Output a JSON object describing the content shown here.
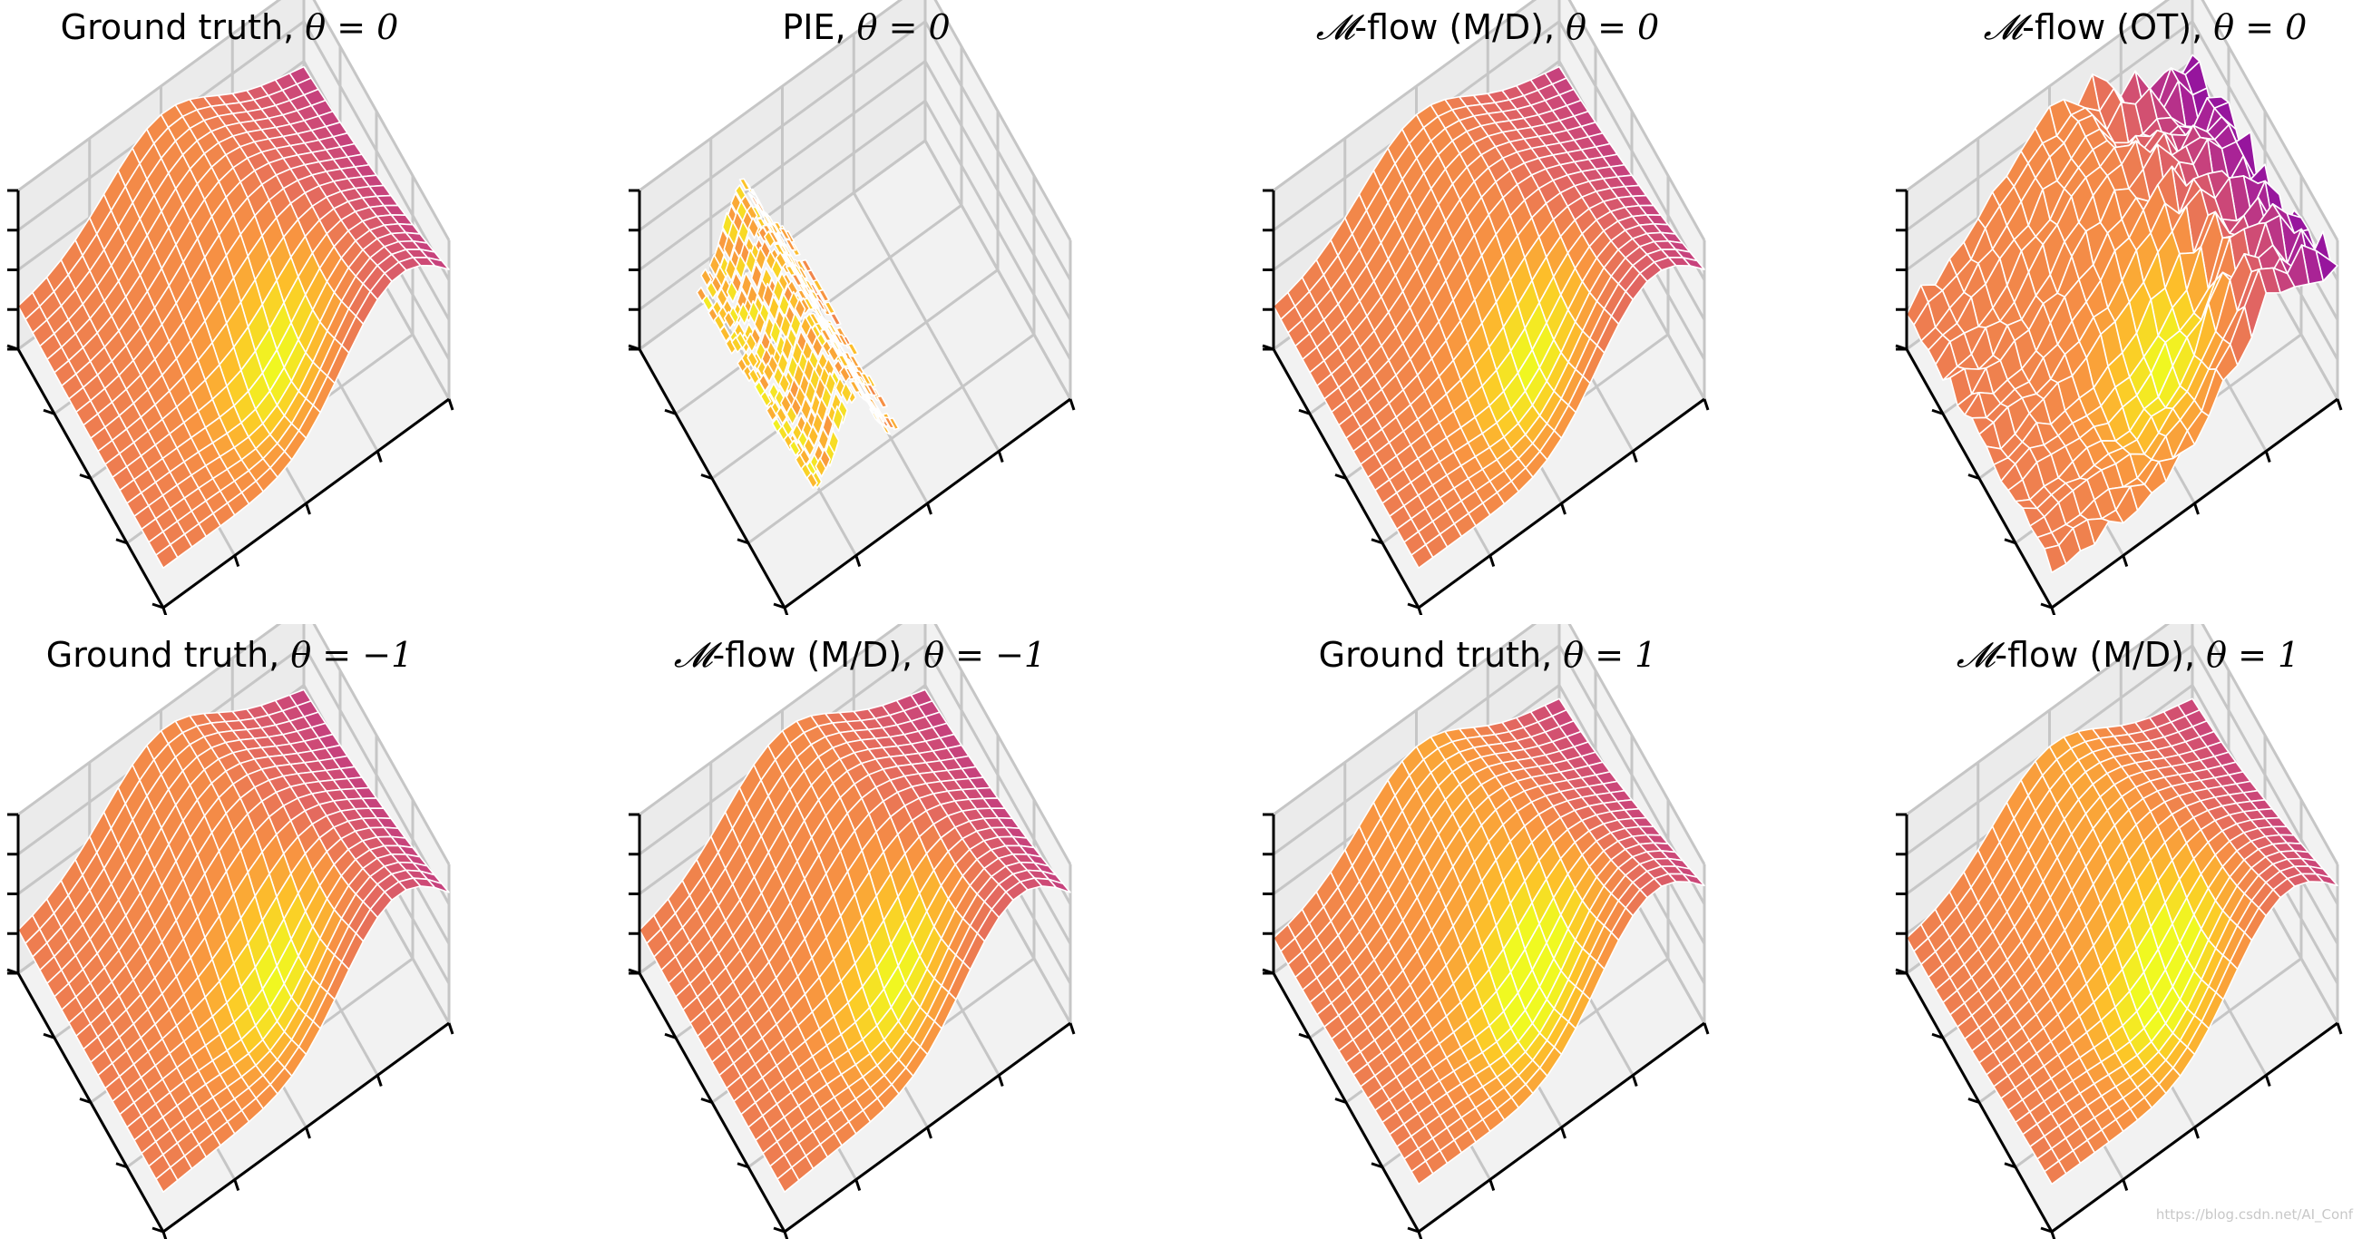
{
  "chart_data": [
    {
      "type": "surface",
      "title": "Ground truth, θ = 0",
      "title_parts": {
        "cal": "",
        "text": "Ground truth, ",
        "theta": "θ = 0"
      },
      "model": "ground_truth",
      "theta": 0,
      "colormap": "plasma",
      "grid": true,
      "tick_labels": false
    },
    {
      "type": "surface",
      "title": "PIE, θ = 0",
      "title_parts": {
        "cal": "",
        "text": "PIE, ",
        "theta": "θ = 0"
      },
      "model": "pie",
      "theta": 0,
      "colormap": "plasma",
      "grid": true,
      "tick_labels": false
    },
    {
      "type": "surface",
      "title": "𝓜-flow (M/D), θ = 0",
      "title_parts": {
        "cal": "𝓜",
        "text": "-flow (M/D), ",
        "theta": "θ = 0"
      },
      "model": "mflow_md",
      "theta": 0,
      "colormap": "plasma",
      "grid": true,
      "tick_labels": false
    },
    {
      "type": "surface",
      "title": "𝓜-flow (OT), θ = 0",
      "title_parts": {
        "cal": "𝓜",
        "text": "-flow (OT), ",
        "theta": "θ = 0"
      },
      "model": "mflow_ot",
      "theta": 0,
      "colormap": "plasma",
      "grid": true,
      "tick_labels": false
    },
    {
      "type": "surface",
      "title": "Ground truth, θ = −1",
      "title_parts": {
        "cal": "",
        "text": "Ground truth, ",
        "theta": "θ = −1"
      },
      "model": "ground_truth",
      "theta": -1,
      "colormap": "plasma",
      "grid": true,
      "tick_labels": false
    },
    {
      "type": "surface",
      "title": "𝓜-flow (M/D), θ = −1",
      "title_parts": {
        "cal": "𝓜",
        "text": "-flow (M/D), ",
        "theta": "θ = −1"
      },
      "model": "mflow_md",
      "theta": -1,
      "colormap": "plasma",
      "grid": true,
      "tick_labels": false
    },
    {
      "type": "surface",
      "title": "Ground truth, θ = 1",
      "title_parts": {
        "cal": "",
        "text": "Ground truth, ",
        "theta": "θ = 1"
      },
      "model": "ground_truth",
      "theta": 1,
      "colormap": "plasma",
      "grid": true,
      "tick_labels": false
    },
    {
      "type": "surface",
      "title": "𝓜-flow (M/D), θ = 1",
      "title_parts": {
        "cal": "𝓜",
        "text": "-flow (M/D), ",
        "theta": "θ = 1"
      },
      "model": "mflow_md",
      "theta": 1,
      "colormap": "plasma",
      "grid": true,
      "tick_labels": false
    }
  ],
  "colors": {
    "pane": "#f2f2f2",
    "pane_side": "#ebebeb",
    "gridline": "#c6c6c6",
    "axis": "#000000",
    "wire": "#ffffff"
  },
  "watermark": "https://blog.csdn.net/AI_Conf"
}
